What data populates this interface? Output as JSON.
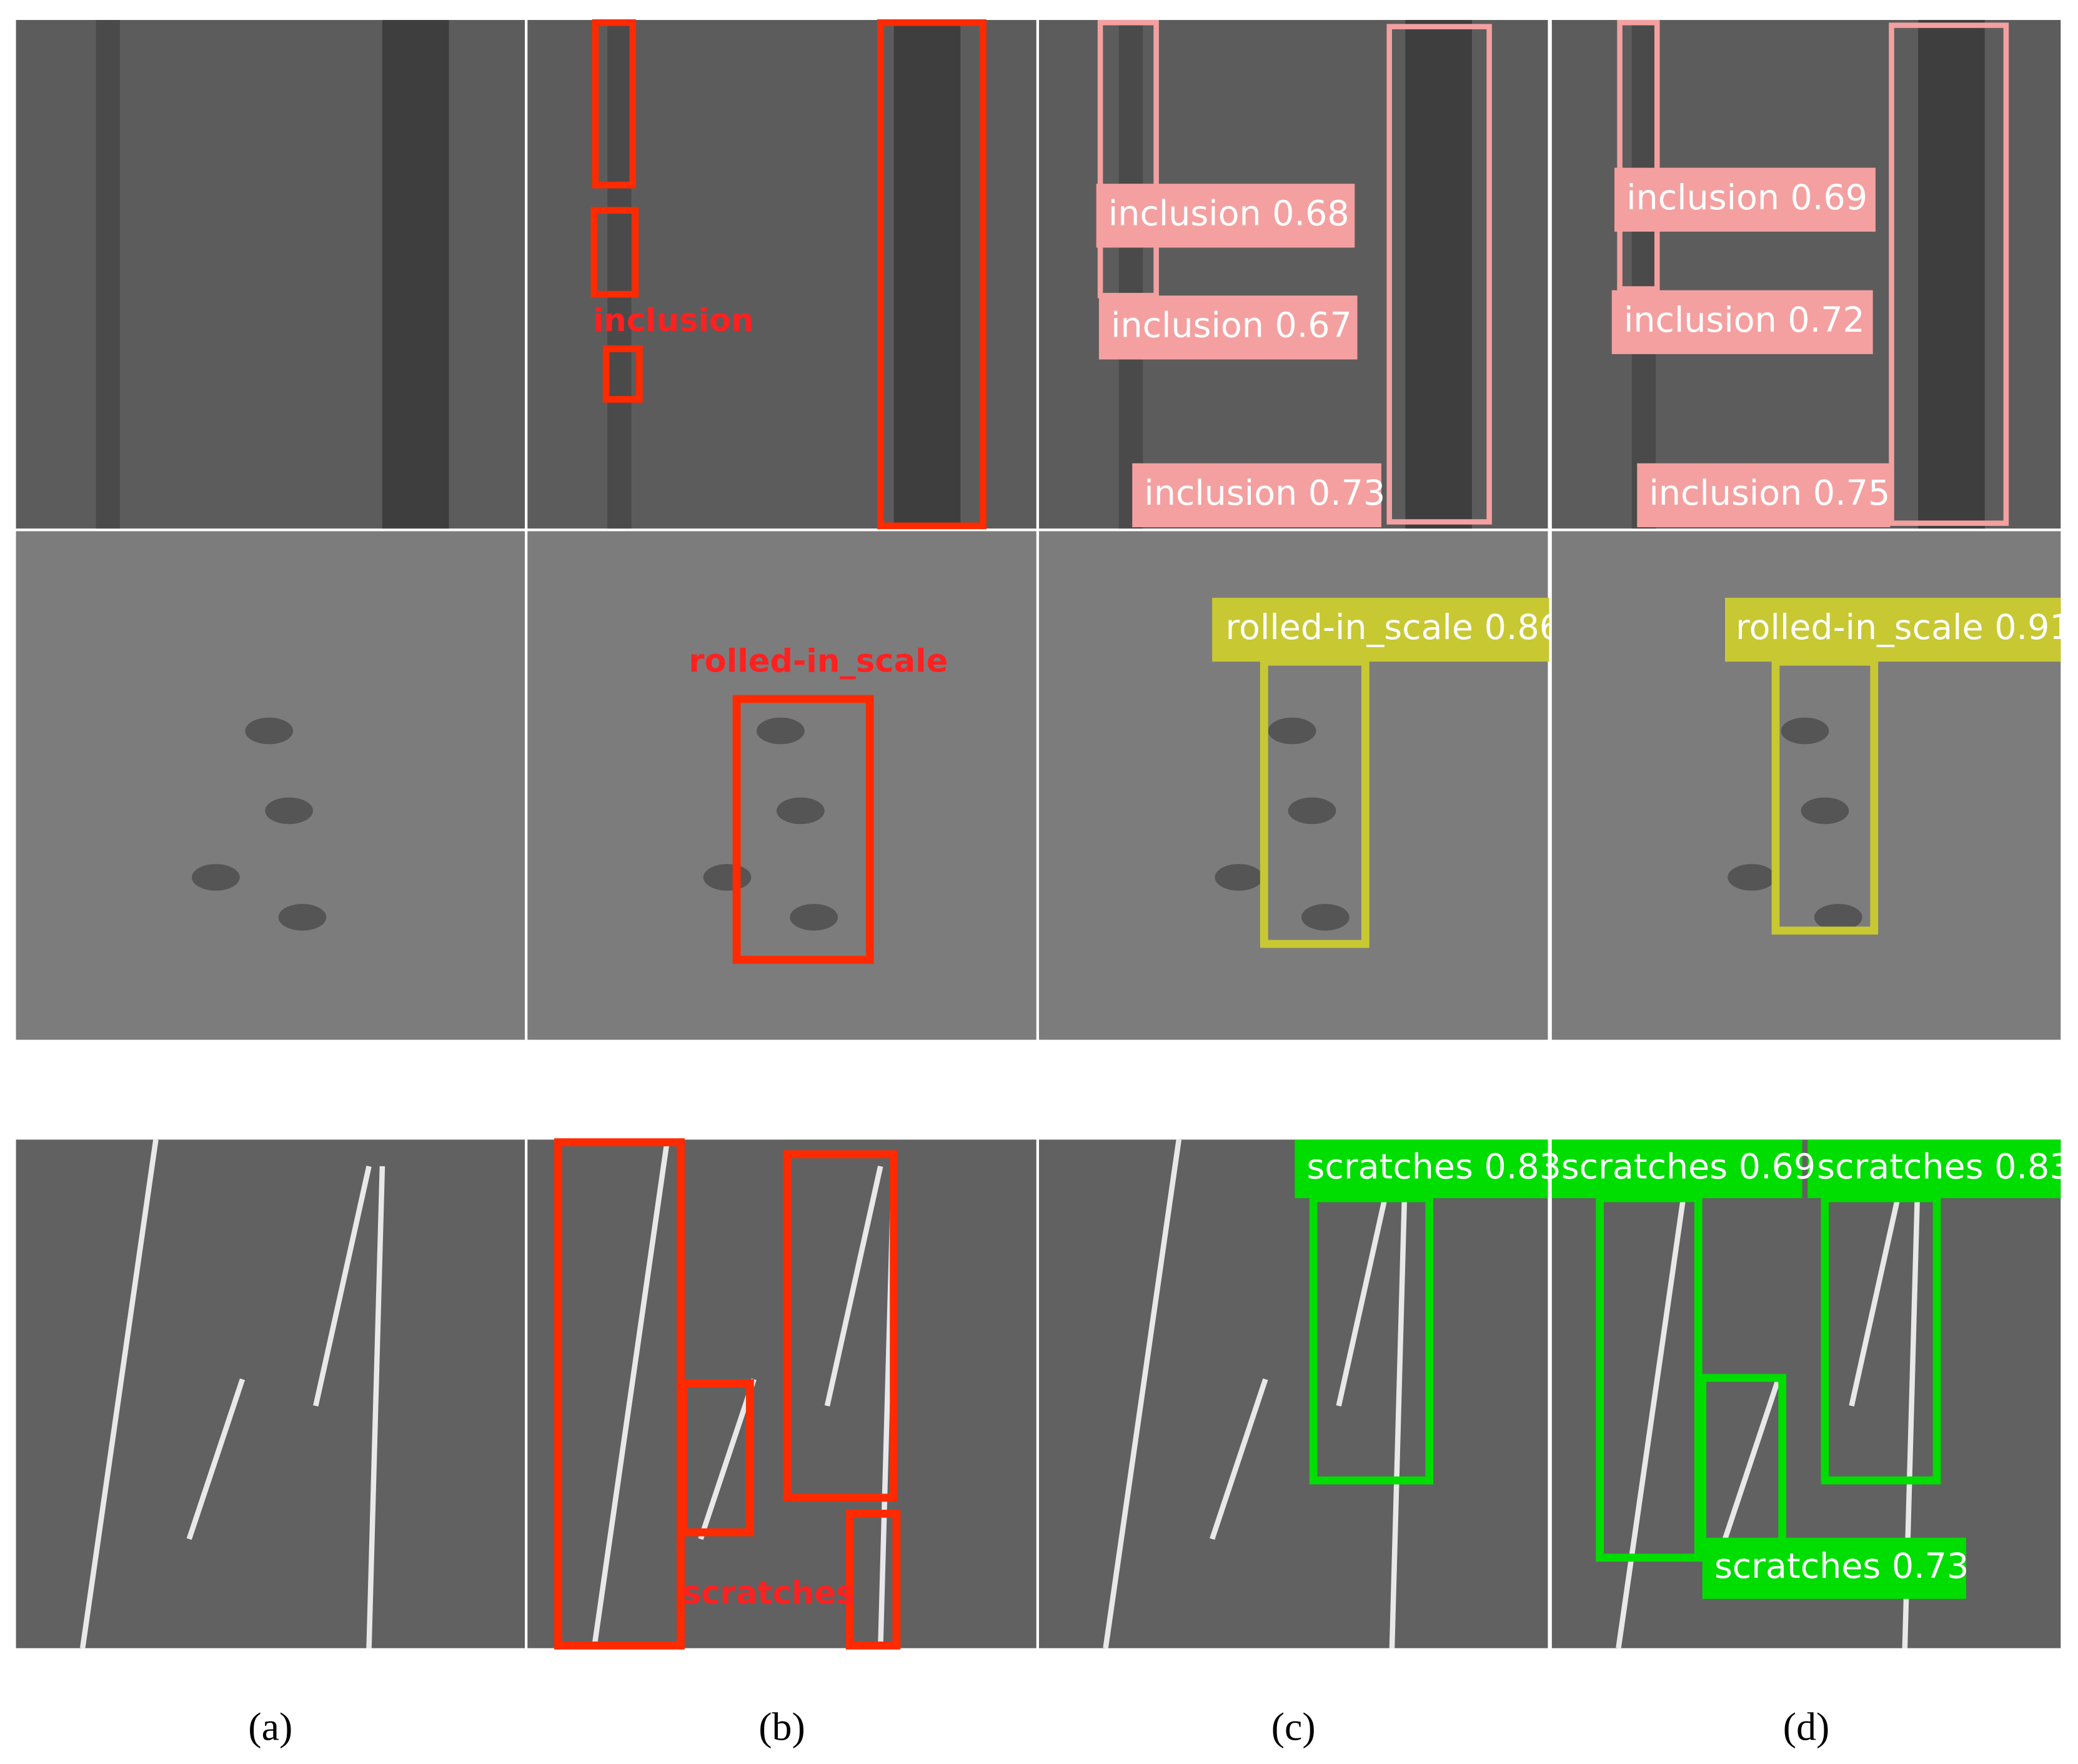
{
  "labels": {
    "row1": {
      "b": [
        "inclusion"
      ],
      "c": [
        "inclusion 0.68",
        "inclusion 0.67",
        "inclusion 0.73"
      ],
      "d": [
        "inclusion 0.69",
        "inclusion 0.72",
        "inclusion 0.75"
      ]
    },
    "row2": {
      "b": [
        "rolled-in_scale"
      ],
      "c": [
        "rolled-in_scale 0.86"
      ],
      "d": [
        "rolled-in_scale 0.91"
      ]
    },
    "row3": {
      "b": [
        "scratches"
      ],
      "c": [
        "scratches 0.83"
      ],
      "d": [
        "scratches 0.69",
        "scratches 0.83",
        "scratches 0.73"
      ]
    }
  },
  "captions": [
    "(a)",
    "(b)",
    "(c)",
    "(d)"
  ]
}
